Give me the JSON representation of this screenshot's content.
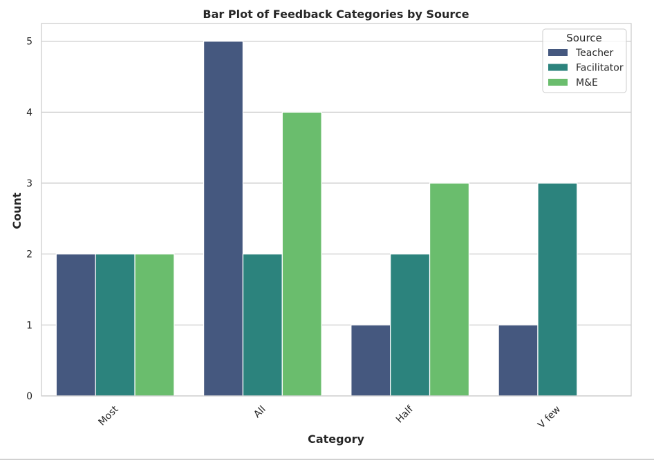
{
  "chart_data": {
    "type": "bar",
    "title": "Bar Plot of Feedback Categories by Source",
    "xlabel": "Category",
    "ylabel": "Count",
    "categories": [
      "Most",
      "All",
      "Half",
      "V few"
    ],
    "series": [
      {
        "name": "Teacher",
        "values": [
          2,
          5,
          1,
          1
        ],
        "color": "#45587f"
      },
      {
        "name": "Facilitator",
        "values": [
          2,
          2,
          2,
          3
        ],
        "color": "#2c837d"
      },
      {
        "name": "M&E",
        "values": [
          2,
          4,
          3,
          0
        ],
        "color": "#6abd6d"
      }
    ],
    "ylim": [
      0,
      5.25
    ],
    "yticks": [
      "0",
      "1",
      "2",
      "3",
      "4",
      "5"
    ],
    "grid": true,
    "legend": {
      "title": "Source",
      "placement": "top-right"
    }
  }
}
